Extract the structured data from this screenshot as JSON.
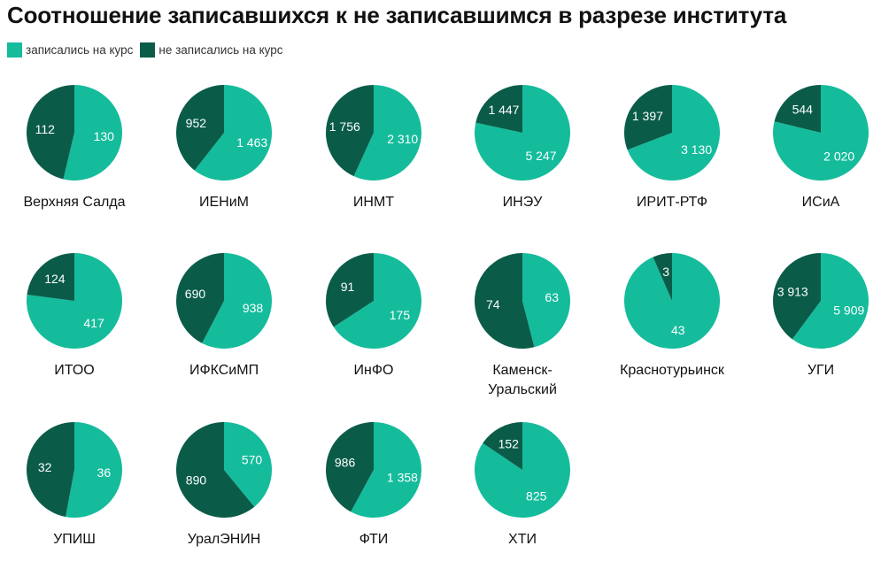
{
  "title": "Соотношение записавшихся к не записавшимся в разрезе института",
  "colors": {
    "enrolled": "#14bc9c",
    "not_enrolled": "#0a5c49"
  },
  "chart_data": {
    "type": "pie",
    "series_names": [
      "записались на курс",
      "не записались на курс"
    ],
    "pies": [
      {
        "label": [
          "Верхняя Салда"
        ],
        "enrolled": 130,
        "enrolled_text": "130",
        "not_enrolled": 112,
        "not_enrolled_text": "112"
      },
      {
        "label": [
          "ИЕНиМ"
        ],
        "enrolled": 1463,
        "enrolled_text": "1 463",
        "not_enrolled": 952,
        "not_enrolled_text": "952"
      },
      {
        "label": [
          "ИНМТ"
        ],
        "enrolled": 2310,
        "enrolled_text": "2 310",
        "not_enrolled": 1756,
        "not_enrolled_text": "1 756"
      },
      {
        "label": [
          "ИНЭУ"
        ],
        "enrolled": 5247,
        "enrolled_text": "5 247",
        "not_enrolled": 1447,
        "not_enrolled_text": "1 447"
      },
      {
        "label": [
          "ИРИТ-РТФ"
        ],
        "enrolled": 3130,
        "enrolled_text": "3 130",
        "not_enrolled": 1397,
        "not_enrolled_text": "1 397"
      },
      {
        "label": [
          "ИСиА"
        ],
        "enrolled": 2020,
        "enrolled_text": "2 020",
        "not_enrolled": 544,
        "not_enrolled_text": "544"
      },
      {
        "label": [
          "ИТОО"
        ],
        "enrolled": 417,
        "enrolled_text": "417",
        "not_enrolled": 124,
        "not_enrolled_text": "124"
      },
      {
        "label": [
          "ИФКСиМП"
        ],
        "enrolled": 938,
        "enrolled_text": "938",
        "not_enrolled": 690,
        "not_enrolled_text": "690"
      },
      {
        "label": [
          "ИнФО"
        ],
        "enrolled": 175,
        "enrolled_text": "175",
        "not_enrolled": 91,
        "not_enrolled_text": "91"
      },
      {
        "label": [
          "Каменск-",
          "Уральский"
        ],
        "enrolled": 63,
        "enrolled_text": "63",
        "not_enrolled": 74,
        "not_enrolled_text": "74"
      },
      {
        "label": [
          "Краснотурьинск"
        ],
        "enrolled": 43,
        "enrolled_text": "43",
        "not_enrolled": 3,
        "not_enrolled_text": "3"
      },
      {
        "label": [
          "УГИ"
        ],
        "enrolled": 5909,
        "enrolled_text": "5 909",
        "not_enrolled": 3913,
        "not_enrolled_text": "3 913"
      },
      {
        "label": [
          "УПИШ"
        ],
        "enrolled": 36,
        "enrolled_text": "36",
        "not_enrolled": 32,
        "not_enrolled_text": "32"
      },
      {
        "label": [
          "УралЭНИН"
        ],
        "enrolled": 570,
        "enrolled_text": "570",
        "not_enrolled": 890,
        "not_enrolled_text": "890"
      },
      {
        "label": [
          "ФТИ"
        ],
        "enrolled": 1358,
        "enrolled_text": "1 358",
        "not_enrolled": 986,
        "not_enrolled_text": "986"
      },
      {
        "label": [
          "ХТИ"
        ],
        "enrolled": 825,
        "enrolled_text": "825",
        "not_enrolled": 152,
        "not_enrolled_text": "152"
      }
    ]
  }
}
